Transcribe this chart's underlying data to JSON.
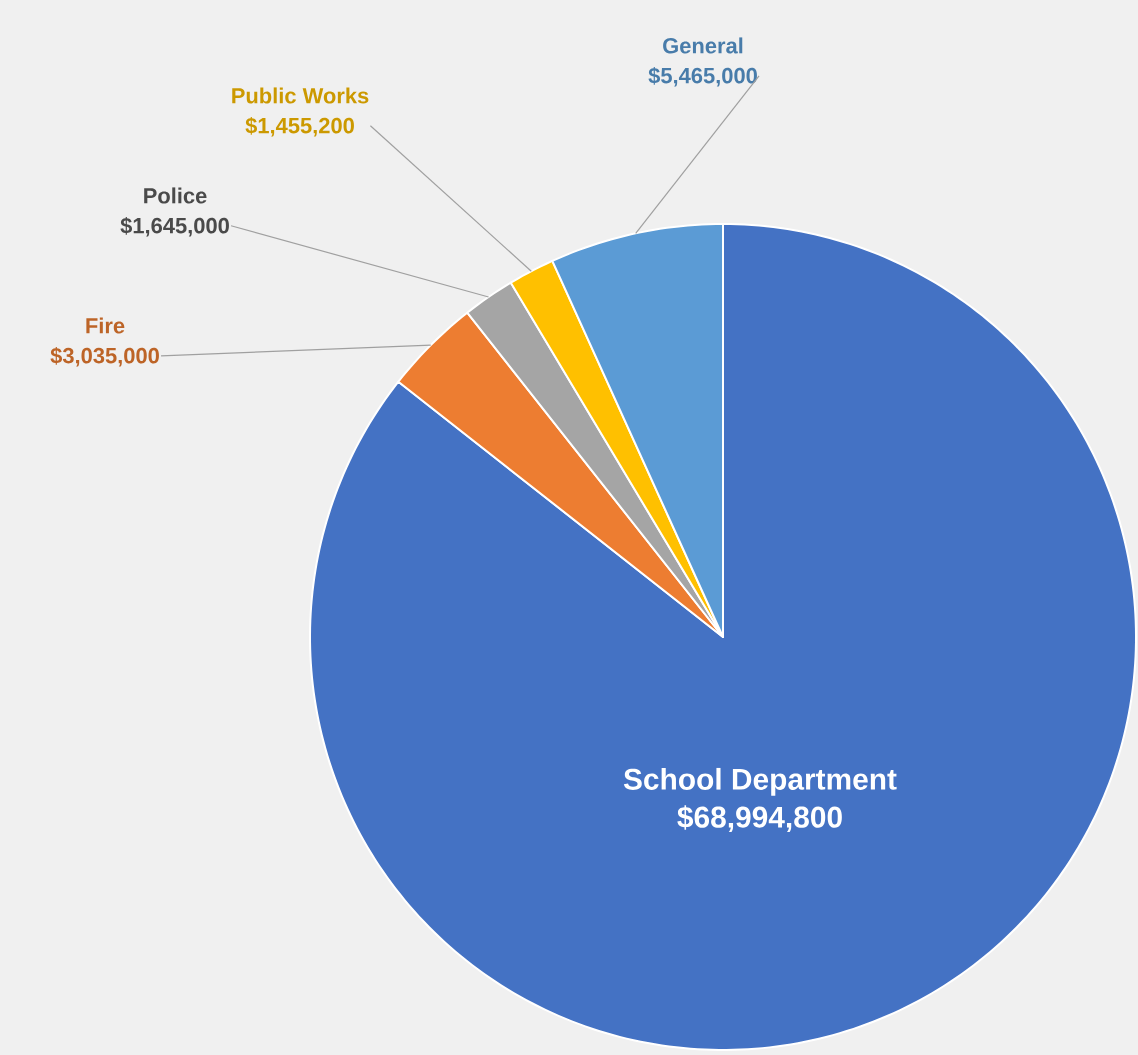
{
  "chart_data": {
    "type": "pie",
    "categories": [
      "School Department",
      "Fire",
      "Police",
      "Public Works",
      "General"
    ],
    "values": [
      68994800,
      3035000,
      1645000,
      1455200,
      5465000
    ],
    "value_labels": [
      "$68,994,800",
      "$3,035,000",
      "$1,645,000",
      "$1,455,200",
      "$5,465,000"
    ],
    "colors": [
      "#4472c4",
      "#ed7d31",
      "#a5a5a5",
      "#ffc000",
      "#5b9bd5"
    ]
  }
}
